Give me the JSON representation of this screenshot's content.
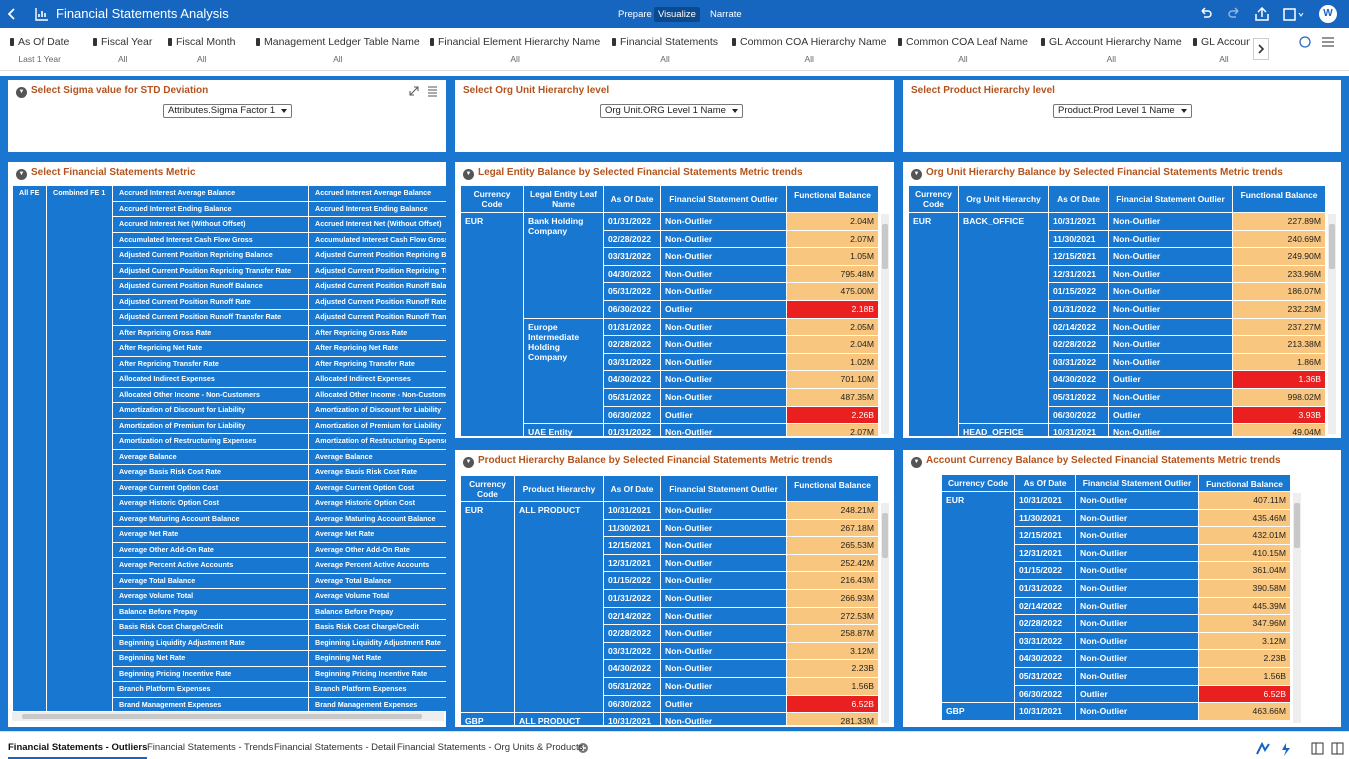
{
  "header": {
    "title": "Financial Statements Analysis",
    "modes": [
      "Prepare",
      "Visualize",
      "Narrate"
    ],
    "active_mode": 1,
    "user_initial": "W"
  },
  "filters": [
    {
      "label": "As Of Date",
      "value": "Last 1 Year"
    },
    {
      "label": "Fiscal Year",
      "value": "All"
    },
    {
      "label": "Fiscal Month",
      "value": "All"
    },
    {
      "label": "Management Ledger Table Name",
      "value": "All"
    },
    {
      "label": "Financial Element Hierarchy Name",
      "value": "All"
    },
    {
      "label": "Financial Statements",
      "value": "All"
    },
    {
      "label": "Common COA Hierarchy Name",
      "value": "All"
    },
    {
      "label": "Common COA Leaf Name",
      "value": "All"
    },
    {
      "label": "GL Account Hierarchy Name",
      "value": "All"
    },
    {
      "label": "GL Account",
      "value": "All"
    }
  ],
  "selectors": [
    {
      "title": "Select Sigma value for STD Deviation",
      "selected": "Attributes.Sigma Factor 1"
    },
    {
      "title": "Select Org Unit Hierarchy level",
      "selected": "Org Unit.ORG Level 1 Name"
    },
    {
      "title": "Select Product Hierarchy level",
      "selected": "Product.Prod Level 1 Name"
    }
  ],
  "metric_panel": {
    "title": "Select Financial Statements Metric",
    "all_fe": "All FE",
    "combined_fe": "Combined FE 1",
    "metrics": [
      "Accrued Interest Average Balance",
      "Accrued Interest Ending Balance",
      "Accrued Interest Net (Without Offset)",
      "Accumulated Interest Cash Flow Gross",
      "Adjusted Current Position Repricing Balance",
      "Adjusted Current Position Repricing Transfer Rate",
      "Adjusted Current Position Runoff Balance",
      "Adjusted Current Position Runoff Rate",
      "Adjusted Current Position Runoff Transfer Rate",
      "After Repricing Gross Rate",
      "After Repricing Net Rate",
      "After Repricing Transfer Rate",
      "Allocated Indirect Expenses",
      "Allocated Other Income - Non-Customers",
      "Amortization of Discount for Liability",
      "Amortization of Premium for Liability",
      "Amortization of Restructuring Expenses",
      "Average Balance",
      "Average Basis Risk Cost Rate",
      "Average Current Option Cost",
      "Average Historic Option Cost",
      "Average Maturing Account Balance",
      "Average Net Rate",
      "Average Other Add-On Rate",
      "Average Percent Active Accounts",
      "Average Total Balance",
      "Average Volume Total",
      "Balance Before Prepay",
      "Basis Risk Cost Charge/Credit",
      "Beginning Liquidity Adjustment Rate",
      "Beginning Net Rate",
      "Beginning Pricing Incentive Rate",
      "Branch Platform Expenses",
      "Brand Management Expenses"
    ]
  },
  "tables": {
    "legal_entity": {
      "title": "Legal Entity Balance by Selected Financial Statements Metric trends",
      "balance_color": "#f8c67e",
      "columns": [
        "Currency Code",
        "Legal Entity Leaf Name",
        "As Of Date",
        "Financial Statement Outlier",
        "Functional Balance"
      ],
      "rows": [
        [
          "EUR",
          "Bank Holding Company",
          "01/31/2022",
          "Non-Outlier",
          "2.04M"
        ],
        [
          null,
          null,
          "02/28/2022",
          "Non-Outlier",
          "2.07M"
        ],
        [
          null,
          null,
          "03/31/2022",
          "Non-Outlier",
          "1.05M"
        ],
        [
          null,
          null,
          "04/30/2022",
          "Non-Outlier",
          "795.48M"
        ],
        [
          null,
          null,
          "05/31/2022",
          "Non-Outlier",
          "475.00M"
        ],
        [
          null,
          null,
          "06/30/2022",
          "Outlier",
          {
            "text": "2.18B",
            "color": "#ea1f1f"
          }
        ],
        [
          null,
          "Europe Intermediate Holding Company",
          "01/31/2022",
          "Non-Outlier",
          "2.05M"
        ],
        [
          null,
          null,
          "02/28/2022",
          "Non-Outlier",
          "2.04M"
        ],
        [
          null,
          null,
          "03/31/2022",
          "Non-Outlier",
          "1.02M"
        ],
        [
          null,
          null,
          "04/30/2022",
          "Non-Outlier",
          "701.10M"
        ],
        [
          null,
          null,
          "05/31/2022",
          "Non-Outlier",
          "487.35M"
        ],
        [
          null,
          null,
          "06/30/2022",
          "Outlier",
          {
            "text": "2.26B",
            "color": "#ea1f1f"
          }
        ],
        [
          null,
          "UAE Entity",
          "01/31/2022",
          "Non-Outlier",
          "2.07M"
        ]
      ]
    },
    "org_unit": {
      "title": "Org Unit Hierarchy Balance by Selected Financial Statements Metric trends",
      "balance_color": "#f8c67e",
      "columns": [
        "Currency Code",
        "Org Unit Hierarchy",
        "As Of Date",
        "Financial Statement Outlier",
        "Functional Balance"
      ],
      "rows": [
        [
          "EUR",
          "BACK_OFFICE",
          "10/31/2021",
          "Non-Outlier",
          "227.89M"
        ],
        [
          null,
          null,
          "11/30/2021",
          "Non-Outlier",
          "240.69M"
        ],
        [
          null,
          null,
          "12/15/2021",
          "Non-Outlier",
          "249.90M"
        ],
        [
          null,
          null,
          "12/31/2021",
          "Non-Outlier",
          "233.96M"
        ],
        [
          null,
          null,
          "01/15/2022",
          "Non-Outlier",
          "186.07M"
        ],
        [
          null,
          null,
          "01/31/2022",
          "Non-Outlier",
          "232.23M"
        ],
        [
          null,
          null,
          "02/14/2022",
          "Non-Outlier",
          "237.27M"
        ],
        [
          null,
          null,
          "02/28/2022",
          "Non-Outlier",
          "213.38M"
        ],
        [
          null,
          null,
          "03/31/2022",
          "Non-Outlier",
          "1.86M"
        ],
        [
          null,
          null,
          "04/30/2022",
          "Outlier",
          {
            "text": "1.36B",
            "color": "#ea1f1f"
          }
        ],
        [
          null,
          null,
          "05/31/2022",
          "Non-Outlier",
          "998.02M"
        ],
        [
          null,
          null,
          "06/30/2022",
          "Outlier",
          {
            "text": "3.93B",
            "color": "#ea1f1f"
          }
        ],
        [
          null,
          "HEAD_OFFICE",
          "10/31/2021",
          "Non-Outlier",
          "49.04M"
        ]
      ]
    },
    "product": {
      "title": "Product Hierarchy Balance by Selected Financial Statements Metric trends",
      "balance_color": "#f8c67e",
      "columns": [
        "Currency Code",
        "Product Hierarchy",
        "As Of Date",
        "Financial Statement Outlier",
        "Functional Balance"
      ],
      "rows": [
        [
          "EUR",
          "ALL PRODUCT",
          "10/31/2021",
          "Non-Outlier",
          "248.21M"
        ],
        [
          null,
          null,
          "11/30/2021",
          "Non-Outlier",
          "267.18M"
        ],
        [
          null,
          null,
          "12/15/2021",
          "Non-Outlier",
          "265.53M"
        ],
        [
          null,
          null,
          "12/31/2021",
          "Non-Outlier",
          "252.42M"
        ],
        [
          null,
          null,
          "01/15/2022",
          "Non-Outlier",
          "216.43M"
        ],
        [
          null,
          null,
          "01/31/2022",
          "Non-Outlier",
          "266.93M"
        ],
        [
          null,
          null,
          "02/14/2022",
          "Non-Outlier",
          "272.53M"
        ],
        [
          null,
          null,
          "02/28/2022",
          "Non-Outlier",
          "258.87M"
        ],
        [
          null,
          null,
          "03/31/2022",
          "Non-Outlier",
          "3.12M"
        ],
        [
          null,
          null,
          "04/30/2022",
          "Non-Outlier",
          "2.23B"
        ],
        [
          null,
          null,
          "05/31/2022",
          "Non-Outlier",
          "1.56B"
        ],
        [
          null,
          null,
          "06/30/2022",
          "Outlier",
          {
            "text": "6.52B",
            "color": "#ea1f1f"
          }
        ],
        [
          "GBP",
          "ALL PRODUCT",
          "10/31/2021",
          "Non-Outlier",
          "281.33M"
        ]
      ]
    },
    "account_currency": {
      "title": "Account Currency Balance by Selected Financial Statements Metric trends",
      "balance_color": "#f8c67e",
      "columns": [
        "Currency Code",
        "As Of Date",
        "Financial Statement Outlier",
        "Functional Balance"
      ],
      "rows": [
        [
          "EUR",
          "10/31/2021",
          "Non-Outlier",
          "407.11M"
        ],
        [
          null,
          "11/30/2021",
          "Non-Outlier",
          "435.46M"
        ],
        [
          null,
          "12/15/2021",
          "Non-Outlier",
          "432.01M"
        ],
        [
          null,
          "12/31/2021",
          "Non-Outlier",
          "410.15M"
        ],
        [
          null,
          "01/15/2022",
          "Non-Outlier",
          "361.04M"
        ],
        [
          null,
          "01/31/2022",
          "Non-Outlier",
          "390.58M"
        ],
        [
          null,
          "02/14/2022",
          "Non-Outlier",
          "445.39M"
        ],
        [
          null,
          "02/28/2022",
          "Non-Outlier",
          "347.96M"
        ],
        [
          null,
          "03/31/2022",
          "Non-Outlier",
          "3.12M"
        ],
        [
          null,
          "04/30/2022",
          "Non-Outlier",
          "2.23B"
        ],
        [
          null,
          "05/31/2022",
          "Non-Outlier",
          "1.56B"
        ],
        [
          null,
          "06/30/2022",
          "Outlier",
          {
            "text": "6.52B",
            "color": "#ea1f1f"
          }
        ],
        [
          "GBP",
          "10/31/2021",
          "Non-Outlier",
          "463.66M"
        ]
      ]
    }
  },
  "canvas_tabs": {
    "tabs": [
      "Financial Statements - Outliers",
      "Financial Statements - Trends",
      "Financial Statements - Detail",
      "Financial Statements - Org Units & Products"
    ],
    "active": 0
  }
}
